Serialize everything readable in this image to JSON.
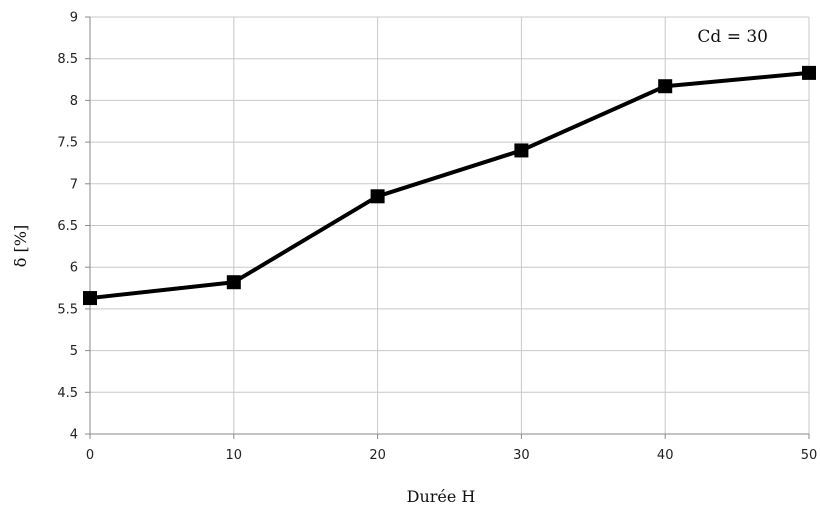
{
  "chart_data": {
    "type": "line",
    "xlabel": "Durée H",
    "ylabel": "δ [%]",
    "annotation": "Cd = 30",
    "xlim": [
      0,
      50
    ],
    "ylim": [
      4,
      9
    ],
    "x_ticks": [
      0,
      10,
      20,
      30,
      40,
      50
    ],
    "y_ticks": [
      4,
      4.5,
      5,
      5.5,
      6,
      6.5,
      7,
      7.5,
      8,
      8.5,
      9
    ],
    "grid": true,
    "legend": "none",
    "marker": "square",
    "line_color": "#000000",
    "grid_color": "#c8c8c8",
    "series": [
      {
        "x": [
          0,
          10,
          20,
          30,
          40,
          50
        ],
        "y": [
          5.63,
          5.82,
          6.85,
          7.4,
          8.17,
          8.33
        ]
      }
    ]
  }
}
